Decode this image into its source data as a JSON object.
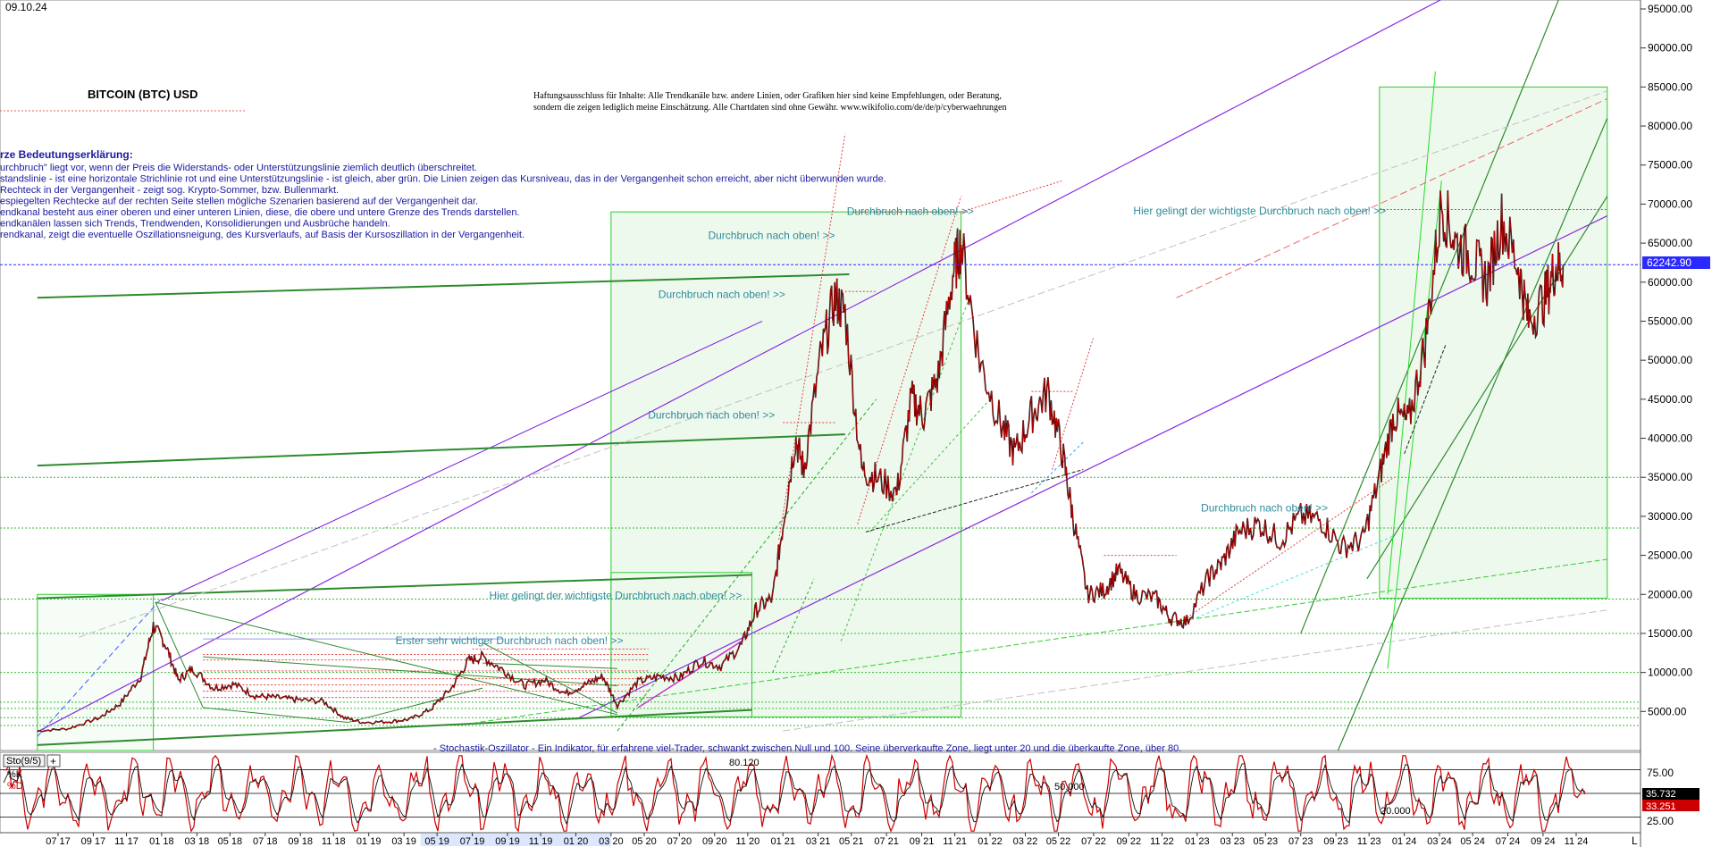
{
  "header": {
    "date": "09.10.24",
    "title": "BITCOIN (BTC) USD",
    "disclaimer_line1": "Haftungsausschluss für Inhalte: Alle Trendkanäle bzw. andere Linien, oder Grafiken hier sind keine Empfehlungen, oder Beratung,",
    "disclaimer_line2": "sondern die zeigen lediglich meine  Einschätzung. Alle Chartdaten sind ohne Gewähr.  www.wikifolio.com/de/de/p/cyberwaehrungen"
  },
  "legend_text": {
    "heading": "rze Bedeutungserklärung:",
    "lines": [
      "urchbruch\" liegt vor, wenn der Preis die Widerstands- oder Unterstützungslinie ziemlich deutlich überschreitet.",
      "standslinie - ist eine horizontale Strichlinie rot und eine Unterstützungslinie - ist gleich, aber grün. Die Linien zeigen das Kursniveau, das in der Vergangenheit schon erreicht, aber nicht überwunden wurde.",
      " Rechteck in der Vergangenheit - zeigt sog. Krypto-Sommer, bzw. Bullenmarkt.",
      "espiegelten Rechtecke auf der rechten Seite stellen mögliche Szenarien basierend auf der Vergangenheit dar.",
      "endkanal besteht aus einer oberen und einer unteren Linien, diese, die obere und untere Grenze des Trends darstellen.",
      "endkanälen lassen sich Trends, Trendwenden, Konsolidierungen und Ausbrüche handeln.",
      "rendkanal, zeigt die eventuelle Oszillationsneigung, des Kursverlaufs, auf Basis der Kursoszillation in der Vergangenheit."
    ]
  },
  "annotations": [
    {
      "text": "Durchbruch nach oben! >>",
      "date": 2021.27,
      "price": 65500
    },
    {
      "text": "Durchbruch nach oben! >>",
      "date": 2021.03,
      "price": 58000
    },
    {
      "text": "Durchbruch nach oben! >>",
      "date": 2020.98,
      "price": 42500
    },
    {
      "text": "Durchbruch nach oben! >>",
      "date": 2021.94,
      "price": 68600
    },
    {
      "text": "Hier gelingt der wichtigste Durchbruch nach oben! >>",
      "date": 2020.95,
      "price": 19400
    },
    {
      "text": "Erster sehr wichtiger Durchbruch nach oben! >>",
      "date": 2020.34,
      "price": 13600
    },
    {
      "text": "Durchbruch nach oben! >>",
      "date": 2023.65,
      "price": 30600
    },
    {
      "text": "Hier gelingt der wichtigste Durchbruch nach oben! >>",
      "date": 2024.06,
      "price": 68700
    }
  ],
  "oscillator": {
    "label": "Sto(9/5)",
    "k_label": "%K",
    "d_label": "%D",
    "note": "- Stochastik-Oszillator - Ein Indikator, für erfahrene viel-Trader, schwankt zwischen Null und 100. Seine überverkaufte Zone, liegt unter 20 und die überkaufte Zone, über 80.",
    "level_texts": [
      "80.120",
      "50.000",
      "20.000"
    ],
    "k_value": "35.732",
    "d_value": "33.251",
    "k_color": "#cc0000",
    "d_color": "#111111",
    "axis_labels": [
      "75.00",
      "25.00"
    ],
    "ylim": [
      0,
      100
    ]
  },
  "price_badge": {
    "text": "62242.90",
    "value": 62242.9,
    "color": "#2a2aff"
  },
  "corner_label": "L",
  "chart_data": {
    "type": "line",
    "title": "BITCOIN (BTC) USD",
    "xlabel": "",
    "ylabel": "",
    "x_range": [
      2017.4,
      2024.98
    ],
    "ylim": [
      0,
      96500
    ],
    "y_ticks": [
      5000,
      10000,
      15000,
      20000,
      25000,
      30000,
      35000,
      40000,
      45000,
      50000,
      55000,
      60000,
      65000,
      70000,
      75000,
      80000,
      85000,
      90000,
      95000
    ],
    "y_tick_labels": [
      "5000.00",
      "10000.00",
      "15000.00",
      "20000.00",
      "25000.00",
      "30000.00",
      "35000.00",
      "40000.00",
      "45000.00",
      "50000.00",
      "55000.00",
      "60000.00",
      "65000.00",
      "70000.00",
      "75000.00",
      "80000.00",
      "85000.00",
      "90000.00",
      "95000.00"
    ],
    "x_tick_labels": [
      "07 17",
      "09 17",
      "11 17",
      "01 18",
      "03 18",
      "05 18",
      "07 18",
      "09 18",
      "11 18",
      "01 19",
      "03 19",
      "05 19",
      "07 19",
      "09 19",
      "11 19",
      "01 20",
      "03 20",
      "05 20",
      "07 20",
      "09 20",
      "11 20",
      "01 21",
      "03 21",
      "05 21",
      "07 21",
      "09 21",
      "11 21",
      "01 22",
      "03 22",
      "05 22",
      "07 22",
      "09 22",
      "11 22",
      "01 23",
      "03 23",
      "05 23",
      "07 23",
      "09 23",
      "11 23",
      "01 24",
      "03 24",
      "05 24",
      "07 24",
      "09 24",
      "11 24"
    ],
    "x_tick_dates": [
      2017.5,
      2017.67,
      2017.83,
      2018.0,
      2018.17,
      2018.33,
      2018.5,
      2018.67,
      2018.83,
      2019.0,
      2019.17,
      2019.33,
      2019.5,
      2019.67,
      2019.83,
      2020.0,
      2020.17,
      2020.33,
      2020.5,
      2020.67,
      2020.83,
      2021.0,
      2021.17,
      2021.33,
      2021.5,
      2021.67,
      2021.83,
      2022.0,
      2022.17,
      2022.33,
      2022.5,
      2022.67,
      2022.83,
      2023.0,
      2023.17,
      2023.33,
      2023.5,
      2023.67,
      2023.83,
      2024.0,
      2024.17,
      2024.33,
      2024.5,
      2024.67,
      2024.83
    ],
    "series": [
      {
        "color": "#cc0000",
        "x": [
          2017.4,
          2017.55,
          2017.7,
          2017.8,
          2017.9,
          2017.96,
          2018.02,
          2018.08,
          2018.15,
          2018.25,
          2018.35,
          2018.45,
          2018.55,
          2018.65,
          2018.78,
          2018.88,
          2018.97,
          2019.1,
          2019.2,
          2019.3,
          2019.4,
          2019.48,
          2019.55,
          2019.65,
          2019.75,
          2019.85,
          2019.95,
          2020.05,
          2020.13,
          2020.2,
          2020.3,
          2020.4,
          2020.5,
          2020.6,
          2020.7,
          2020.8,
          2020.87,
          2020.95,
          2021.0,
          2021.06,
          2021.1,
          2021.18,
          2021.25,
          2021.3,
          2021.38,
          2021.45,
          2021.55,
          2021.62,
          2021.68,
          2021.75,
          2021.82,
          2021.86,
          2021.95,
          2022.05,
          2022.12,
          2022.2,
          2022.28,
          2022.35,
          2022.4,
          2022.47,
          2022.55,
          2022.62,
          2022.7,
          2022.8,
          2022.87,
          2022.95,
          2023.05,
          2023.12,
          2023.2,
          2023.3,
          2023.4,
          2023.5,
          2023.6,
          2023.7,
          2023.8,
          2023.88,
          2023.95,
          2024.02,
          2024.1,
          2024.18,
          2024.25,
          2024.33,
          2024.4,
          2024.47,
          2024.55,
          2024.6,
          2024.68,
          2024.73,
          2024.77
        ],
        "y": [
          2500,
          2800,
          4200,
          6000,
          9500,
          16000,
          13500,
          9000,
          10500,
          8000,
          8500,
          7000,
          6800,
          6500,
          6300,
          4200,
          3600,
          3700,
          4000,
          5300,
          8000,
          11500,
          12000,
          10300,
          8300,
          9000,
          7300,
          8500,
          9500,
          5800,
          8800,
          9500,
          9300,
          11500,
          10800,
          13500,
          18000,
          19500,
          29000,
          40000,
          36000,
          50000,
          58000,
          56000,
          36000,
          35000,
          33000,
          45000,
          43000,
          48000,
          61000,
          65000,
          50000,
          42000,
          38000,
          43000,
          46000,
          38000,
          30000,
          20000,
          20500,
          23000,
          20000,
          19500,
          17000,
          16500,
          22000,
          24000,
          28000,
          29000,
          27000,
          30000,
          29500,
          26000,
          27000,
          35000,
          43000,
          42000,
          52000,
          70000,
          65000,
          63000,
          60000,
          68000,
          62000,
          55000,
          58000,
          62000,
          62242
        ]
      }
    ]
  }
}
